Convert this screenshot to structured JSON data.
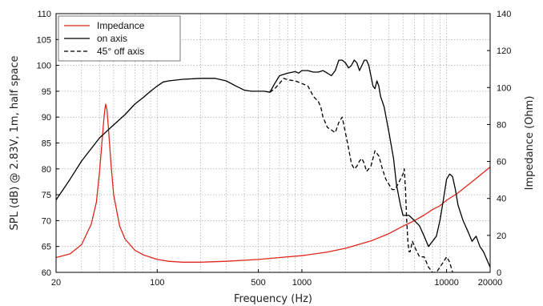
{
  "chart_data": {
    "type": "line",
    "xlabel": "Frequency (Hz)",
    "ylabel": "SPL (dB) @ 2.83V, 1m, half space",
    "y2label": "Impedance (Ohm)",
    "xscale": "log",
    "xlim": [
      20,
      20000
    ],
    "ylim": [
      60,
      110
    ],
    "y2lim": [
      0,
      140
    ],
    "grid": true,
    "legend_position": "top-left",
    "x_ticks": [
      {
        "value": 20,
        "label": "20"
      },
      {
        "value": 100,
        "label": "100"
      },
      {
        "value": 500,
        "label": "500"
      },
      {
        "value": 1000,
        "label": "1000"
      },
      {
        "value": 10000,
        "label": "10000"
      },
      {
        "value": 20000,
        "label": "20000"
      }
    ],
    "y_ticks": [
      {
        "value": 60,
        "label": "60"
      },
      {
        "value": 65,
        "label": "65"
      },
      {
        "value": 70,
        "label": "70"
      },
      {
        "value": 75,
        "label": "75"
      },
      {
        "value": 80,
        "label": "80"
      },
      {
        "value": 85,
        "label": "85"
      },
      {
        "value": 90,
        "label": "90"
      },
      {
        "value": 95,
        "label": "95"
      },
      {
        "value": 100,
        "label": "100"
      },
      {
        "value": 105,
        "label": "105"
      },
      {
        "value": 110,
        "label": "110"
      }
    ],
    "y2_ticks": [
      {
        "value": 0,
        "label": "0"
      },
      {
        "value": 20,
        "label": "20"
      },
      {
        "value": 40,
        "label": "40"
      },
      {
        "value": 60,
        "label": "60"
      },
      {
        "value": 80,
        "label": "80"
      },
      {
        "value": 100,
        "label": "100"
      },
      {
        "value": 120,
        "label": "120"
      },
      {
        "value": 140,
        "label": "140"
      }
    ],
    "series": [
      {
        "name": "Impedance",
        "axis": "right",
        "color": "#e0261c",
        "dash": "solid",
        "points": [
          [
            20,
            8
          ],
          [
            25,
            10
          ],
          [
            30,
            15
          ],
          [
            35,
            26
          ],
          [
            38,
            38
          ],
          [
            40,
            55
          ],
          [
            42,
            75
          ],
          [
            43,
            85
          ],
          [
            44,
            91
          ],
          [
            45,
            88
          ],
          [
            46,
            78
          ],
          [
            48,
            58
          ],
          [
            50,
            42
          ],
          [
            55,
            25
          ],
          [
            60,
            18
          ],
          [
            70,
            12
          ],
          [
            80,
            9.5
          ],
          [
            100,
            7
          ],
          [
            120,
            6
          ],
          [
            150,
            5.5
          ],
          [
            200,
            5.5
          ],
          [
            300,
            6
          ],
          [
            500,
            7
          ],
          [
            700,
            8
          ],
          [
            1000,
            9
          ],
          [
            1500,
            11
          ],
          [
            2000,
            13
          ],
          [
            3000,
            17
          ],
          [
            4000,
            21
          ],
          [
            5000,
            25
          ],
          [
            6000,
            28
          ],
          [
            7000,
            31
          ],
          [
            8000,
            34
          ],
          [
            9000,
            36
          ],
          [
            10000,
            39
          ],
          [
            12000,
            43
          ],
          [
            15000,
            49
          ],
          [
            20000,
            57
          ]
        ]
      },
      {
        "name": "on axis",
        "axis": "left",
        "color": "#000000",
        "dash": "solid",
        "points": [
          [
            20,
            74
          ],
          [
            25,
            78
          ],
          [
            30,
            81.5
          ],
          [
            40,
            86
          ],
          [
            50,
            88.5
          ],
          [
            60,
            90.5
          ],
          [
            70,
            92.5
          ],
          [
            80,
            93.8
          ],
          [
            90,
            95
          ],
          [
            100,
            96
          ],
          [
            110,
            96.8
          ],
          [
            120,
            97
          ],
          [
            150,
            97.3
          ],
          [
            200,
            97.5
          ],
          [
            250,
            97.5
          ],
          [
            300,
            97
          ],
          [
            350,
            96
          ],
          [
            400,
            95.2
          ],
          [
            450,
            95
          ],
          [
            500,
            95
          ],
          [
            550,
            95
          ],
          [
            600,
            94.8
          ],
          [
            650,
            96.5
          ],
          [
            700,
            98
          ],
          [
            800,
            98.5
          ],
          [
            900,
            98.8
          ],
          [
            950,
            98.5
          ],
          [
            1000,
            99
          ],
          [
            1100,
            99
          ],
          [
            1200,
            98.7
          ],
          [
            1300,
            98.7
          ],
          [
            1400,
            99
          ],
          [
            1500,
            98.5
          ],
          [
            1600,
            98
          ],
          [
            1700,
            99
          ],
          [
            1800,
            101
          ],
          [
            1900,
            101
          ],
          [
            2000,
            100.5
          ],
          [
            2100,
            99.5
          ],
          [
            2200,
            100
          ],
          [
            2300,
            101
          ],
          [
            2400,
            100.5
          ],
          [
            2500,
            99
          ],
          [
            2600,
            100
          ],
          [
            2700,
            101
          ],
          [
            2800,
            101
          ],
          [
            2900,
            100
          ],
          [
            3000,
            98
          ],
          [
            3100,
            96
          ],
          [
            3200,
            95.5
          ],
          [
            3300,
            97
          ],
          [
            3400,
            96
          ],
          [
            3500,
            94
          ],
          [
            3700,
            92
          ],
          [
            4000,
            87
          ],
          [
            4300,
            82
          ],
          [
            4500,
            77
          ],
          [
            4800,
            73
          ],
          [
            5000,
            71
          ],
          [
            5500,
            71
          ],
          [
            6000,
            70
          ],
          [
            6500,
            69
          ],
          [
            7000,
            67
          ],
          [
            7500,
            65
          ],
          [
            8000,
            66
          ],
          [
            8500,
            67
          ],
          [
            9000,
            70
          ],
          [
            9500,
            74
          ],
          [
            10000,
            78
          ],
          [
            10500,
            79
          ],
          [
            11000,
            78.5
          ],
          [
            11500,
            76
          ],
          [
            12000,
            73
          ],
          [
            13000,
            70
          ],
          [
            14000,
            68
          ],
          [
            15000,
            66
          ],
          [
            16000,
            67
          ],
          [
            17000,
            65
          ],
          [
            18000,
            64
          ],
          [
            20000,
            61
          ]
        ]
      },
      {
        "name": "45° off axis",
        "axis": "left",
        "color": "#000000",
        "dash": "dashed",
        "points": [
          [
            600,
            94.8
          ],
          [
            650,
            95.5
          ],
          [
            700,
            96.5
          ],
          [
            750,
            97.5
          ],
          [
            800,
            97.2
          ],
          [
            900,
            97
          ],
          [
            1000,
            96.5
          ],
          [
            1100,
            96
          ],
          [
            1150,
            95
          ],
          [
            1200,
            94
          ],
          [
            1300,
            93
          ],
          [
            1350,
            92
          ],
          [
            1400,
            90
          ],
          [
            1500,
            88
          ],
          [
            1600,
            87.5
          ],
          [
            1700,
            87
          ],
          [
            1800,
            89
          ],
          [
            1900,
            90
          ],
          [
            2000,
            87
          ],
          [
            2100,
            84
          ],
          [
            2200,
            81
          ],
          [
            2300,
            80
          ],
          [
            2400,
            80.5
          ],
          [
            2500,
            81.5
          ],
          [
            2600,
            82
          ],
          [
            2700,
            81
          ],
          [
            2800,
            79.5
          ],
          [
            2900,
            80
          ],
          [
            3000,
            80.5
          ],
          [
            3100,
            82
          ],
          [
            3200,
            83.5
          ],
          [
            3400,
            82.5
          ],
          [
            3600,
            80
          ],
          [
            3800,
            78
          ],
          [
            4000,
            77
          ],
          [
            4200,
            76
          ],
          [
            4400,
            76
          ],
          [
            4600,
            77
          ],
          [
            4800,
            78
          ],
          [
            5000,
            79
          ],
          [
            5100,
            80
          ],
          [
            5200,
            76
          ],
          [
            5300,
            70
          ],
          [
            5400,
            66
          ],
          [
            5500,
            64
          ],
          [
            5600,
            64
          ],
          [
            5800,
            66
          ],
          [
            6000,
            65
          ],
          [
            6500,
            63
          ],
          [
            7000,
            63
          ],
          [
            7500,
            61
          ],
          [
            8000,
            60
          ],
          [
            8500,
            60
          ],
          [
            9000,
            61
          ],
          [
            9500,
            62
          ],
          [
            10000,
            63
          ],
          [
            10500,
            62
          ],
          [
            11000,
            60
          ]
        ]
      }
    ]
  }
}
